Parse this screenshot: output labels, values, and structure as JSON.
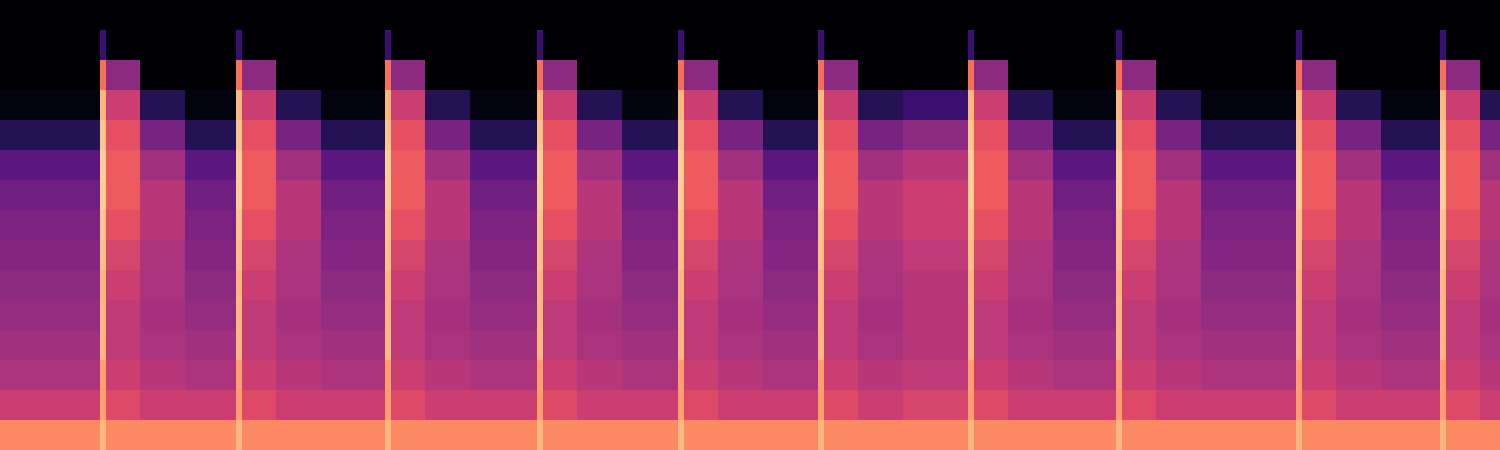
{
  "chart_data": {
    "type": "heatmap",
    "color": "magma",
    "tick_labels": false,
    "xlim": [
      0,
      1500
    ],
    "ylim": [
      0,
      15
    ],
    "zlim": [
      0,
      100
    ],
    "x_edges": [
      0,
      100,
      106,
      140,
      185,
      236,
      242,
      276,
      321,
      385,
      391,
      425,
      470,
      537,
      543,
      577,
      622,
      678,
      684,
      718,
      763,
      818,
      824,
      858,
      903,
      968,
      974,
      1008,
      1053,
      1116,
      1122,
      1156,
      1201,
      1296,
      1302,
      1336,
      1381,
      1440,
      1446,
      1480,
      1500
    ],
    "y_edges": [
      0,
      1,
      2,
      3,
      4,
      5,
      6,
      7,
      8,
      9,
      10,
      11,
      12,
      13,
      14,
      15
    ],
    "values": [
      [
        75,
        85,
        75,
        75,
        75,
        85,
        75,
        75,
        75,
        85,
        75,
        75,
        75,
        85,
        75,
        75,
        75,
        85,
        75,
        75,
        75,
        85,
        75,
        75,
        75,
        85,
        75,
        75,
        75,
        85,
        75,
        75,
        75,
        85,
        75,
        75,
        75,
        85,
        75,
        75
      ],
      [
        55,
        80,
        60,
        55,
        55,
        80,
        60,
        55,
        55,
        80,
        60,
        55,
        55,
        80,
        60,
        55,
        55,
        80,
        60,
        55,
        55,
        80,
        60,
        55,
        58,
        80,
        60,
        55,
        55,
        80,
        60,
        55,
        55,
        80,
        60,
        55,
        55,
        80,
        60,
        55
      ],
      [
        48,
        80,
        55,
        50,
        48,
        80,
        55,
        50,
        48,
        80,
        55,
        50,
        48,
        80,
        55,
        50,
        48,
        80,
        55,
        50,
        48,
        80,
        55,
        50,
        52,
        80,
        55,
        50,
        48,
        80,
        55,
        50,
        48,
        80,
        55,
        50,
        48,
        80,
        55,
        50
      ],
      [
        45,
        85,
        52,
        47,
        45,
        85,
        52,
        47,
        45,
        85,
        52,
        47,
        45,
        85,
        52,
        47,
        45,
        85,
        52,
        47,
        45,
        85,
        52,
        47,
        50,
        85,
        52,
        47,
        45,
        85,
        52,
        47,
        45,
        85,
        52,
        47,
        45,
        85,
        52,
        47
      ],
      [
        42,
        85,
        52,
        46,
        42,
        85,
        52,
        46,
        42,
        85,
        52,
        46,
        42,
        85,
        52,
        46,
        42,
        85,
        52,
        46,
        42,
        85,
        52,
        46,
        50,
        85,
        52,
        46,
        42,
        85,
        52,
        46,
        42,
        85,
        52,
        46,
        42,
        85,
        52,
        46
      ],
      [
        40,
        85,
        55,
        47,
        40,
        85,
        55,
        47,
        40,
        85,
        55,
        47,
        40,
        85,
        55,
        47,
        40,
        85,
        55,
        47,
        40,
        85,
        55,
        47,
        50,
        85,
        55,
        47,
        40,
        85,
        55,
        47,
        40,
        85,
        55,
        47,
        40,
        85,
        55,
        47
      ],
      [
        38,
        87,
        58,
        48,
        38,
        87,
        58,
        48,
        38,
        87,
        58,
        48,
        38,
        87,
        58,
        48,
        38,
        87,
        58,
        48,
        38,
        87,
        58,
        48,
        52,
        87,
        58,
        48,
        38,
        87,
        58,
        48,
        38,
        87,
        58,
        48,
        38,
        87,
        58,
        48
      ],
      [
        36,
        88,
        62,
        50,
        36,
        88,
        62,
        50,
        36,
        88,
        62,
        50,
        36,
        88,
        62,
        50,
        36,
        88,
        62,
        50,
        36,
        88,
        62,
        50,
        55,
        88,
        62,
        50,
        36,
        88,
        62,
        50,
        36,
        88,
        62,
        50,
        36,
        88,
        62,
        50
      ],
      [
        33,
        90,
        65,
        50,
        33,
        90,
        65,
        50,
        33,
        90,
        65,
        50,
        33,
        90,
        65,
        50,
        33,
        90,
        65,
        50,
        33,
        90,
        65,
        50,
        55,
        90,
        65,
        50,
        33,
        90,
        65,
        50,
        33,
        90,
        65,
        50,
        33,
        90,
        65,
        50
      ],
      [
        28,
        90,
        65,
        45,
        28,
        90,
        65,
        45,
        28,
        90,
        65,
        45,
        28,
        90,
        65,
        45,
        28,
        90,
        65,
        45,
        28,
        90,
        65,
        45,
        50,
        90,
        65,
        45,
        28,
        90,
        65,
        45,
        28,
        90,
        65,
        45,
        28,
        90,
        65,
        45
      ],
      [
        15,
        88,
        62,
        35,
        15,
        88,
        62,
        35,
        15,
        88,
        62,
        35,
        15,
        88,
        62,
        35,
        15,
        88,
        62,
        35,
        15,
        88,
        62,
        35,
        40,
        88,
        62,
        35,
        15,
        88,
        62,
        35,
        15,
        88,
        62,
        35,
        15,
        88,
        62,
        35
      ],
      [
        3,
        85,
        55,
        15,
        3,
        85,
        55,
        15,
        3,
        85,
        55,
        15,
        3,
        85,
        55,
        15,
        3,
        85,
        55,
        15,
        3,
        85,
        55,
        15,
        20,
        85,
        55,
        15,
        3,
        85,
        55,
        15,
        3,
        85,
        55,
        15,
        3,
        85,
        55,
        15
      ],
      [
        0,
        70,
        40,
        0,
        0,
        70,
        40,
        0,
        0,
        70,
        40,
        0,
        0,
        70,
        40,
        0,
        0,
        70,
        40,
        0,
        0,
        70,
        40,
        0,
        0,
        70,
        40,
        0,
        0,
        70,
        40,
        0,
        0,
        70,
        40,
        0,
        0,
        70,
        40,
        0
      ],
      [
        0,
        20,
        0,
        0,
        0,
        20,
        0,
        0,
        0,
        20,
        0,
        0,
        0,
        20,
        0,
        0,
        0,
        20,
        0,
        0,
        0,
        20,
        0,
        0,
        0,
        20,
        0,
        0,
        0,
        20,
        0,
        0,
        0,
        20,
        0,
        0,
        0,
        20,
        0,
        0
      ],
      [
        0,
        0,
        0,
        0,
        0,
        0,
        0,
        0,
        0,
        0,
        0,
        0,
        0,
        0,
        0,
        0,
        0,
        0,
        0,
        0,
        0,
        0,
        0,
        0,
        0,
        0,
        0,
        0,
        0,
        0,
        0,
        0,
        0,
        0,
        0,
        0,
        0,
        0,
        0,
        0
      ]
    ]
  }
}
